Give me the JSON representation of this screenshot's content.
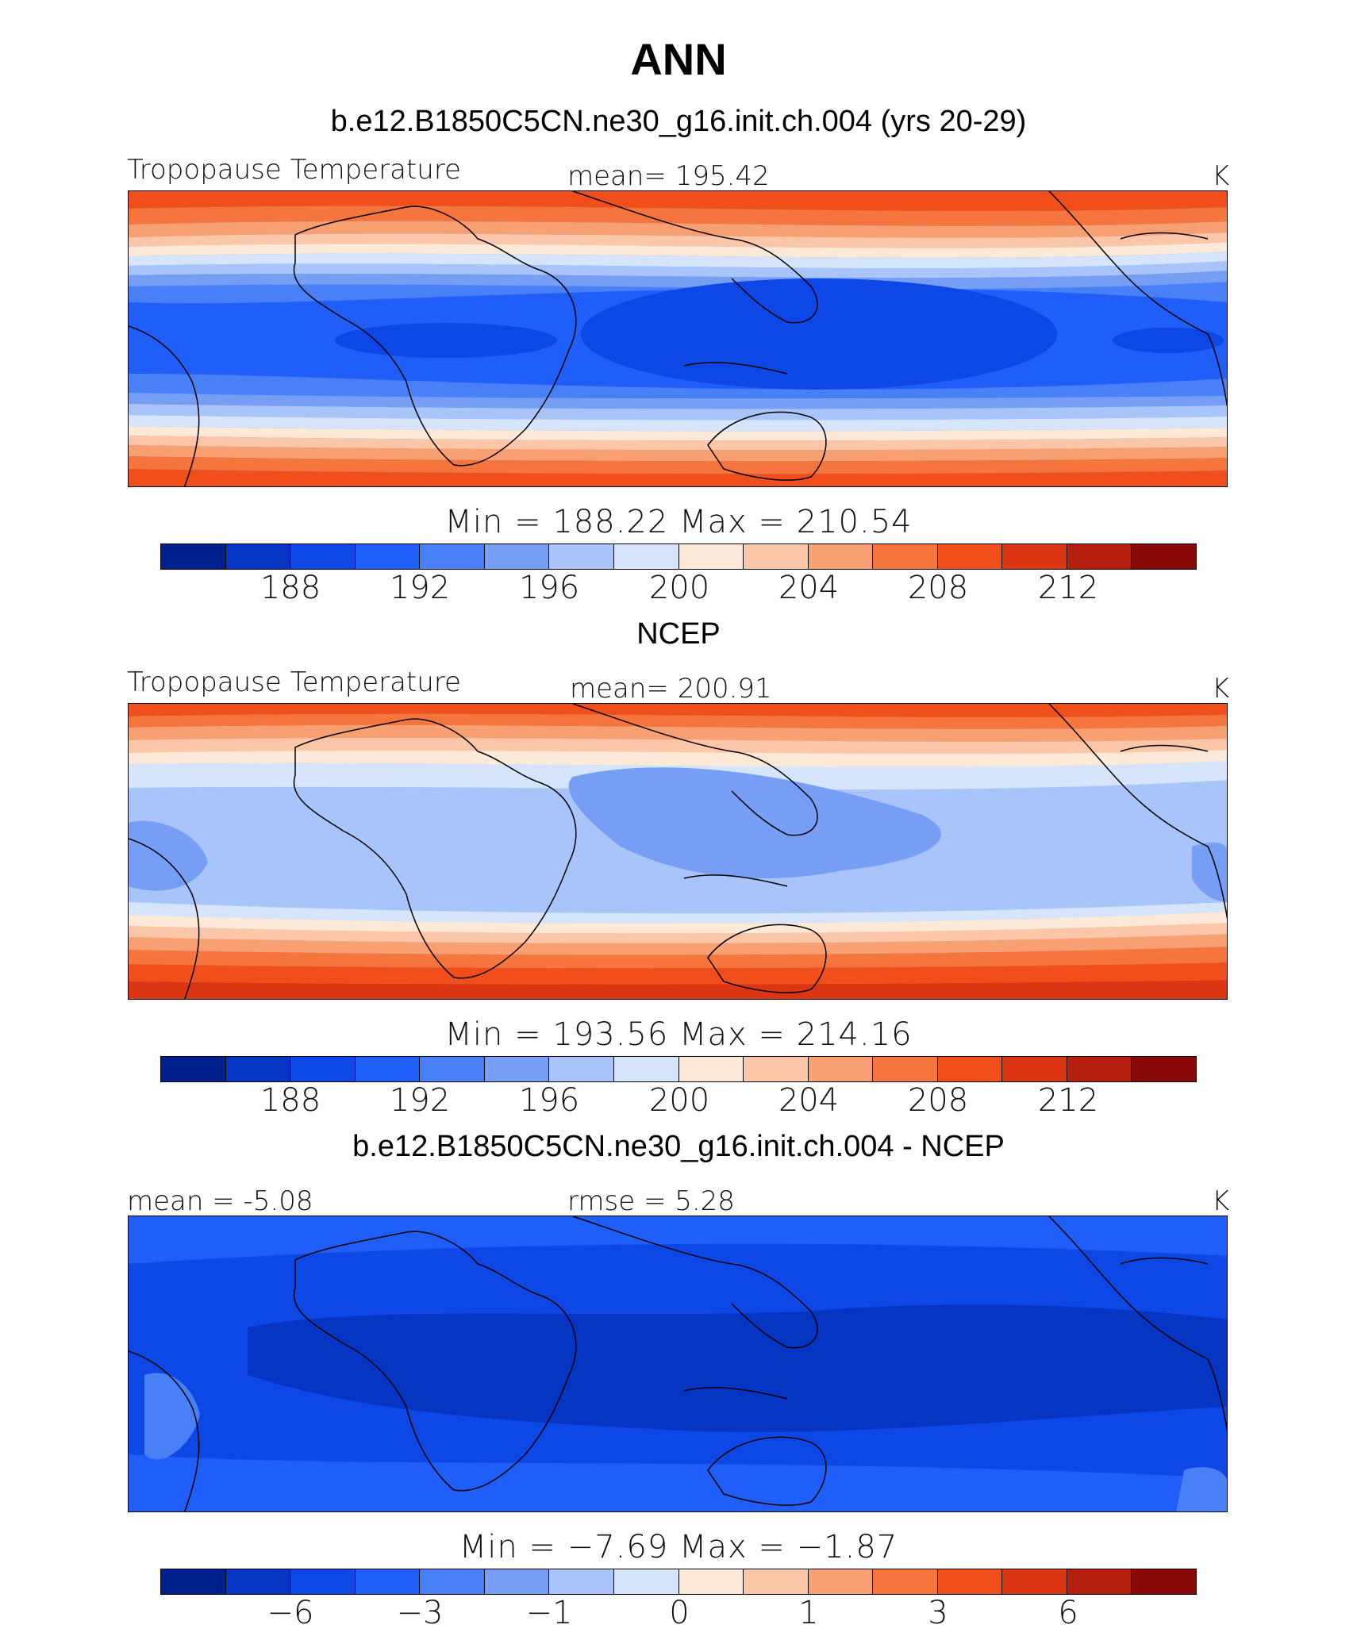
{
  "title": "ANN",
  "panels": [
    {
      "title": "b.e12.B1850C5CN.ne30_g16.init.ch.004 (yrs 20-29)",
      "left_label": "Tropopause Temperature",
      "mid_label": "mean=  195.42",
      "unit": "K",
      "minmax": "Min  =  188.22  Max  =  210.54",
      "tick_labels": [
        "188",
        "192",
        "196",
        "200",
        "204",
        "208",
        "212"
      ]
    },
    {
      "title": "NCEP",
      "left_label": "Tropopause Temperature",
      "mid_label": "mean=  200.91",
      "unit": "K",
      "minmax": "Min  =  193.56  Max  =  214.16",
      "tick_labels": [
        "188",
        "192",
        "196",
        "200",
        "204",
        "208",
        "212"
      ]
    },
    {
      "title": "b.e12.B1850C5CN.ne30_g16.init.ch.004 - NCEP",
      "left_label": "mean =   -5.08",
      "mid_label": "rmse =     5.28",
      "unit": "K",
      "minmax": "Min  =    −7.69  Max  =    −1.87",
      "tick_labels": [
        "−6",
        "−3",
        "−1",
        "0",
        "1",
        "3",
        "6"
      ]
    }
  ],
  "colorbar_colors": [
    "#00208f",
    "#0535c2",
    "#0d47e6",
    "#1f5ef8",
    "#4a80f7",
    "#779ef5",
    "#a9c4f8",
    "#d6e5fb",
    "#fde9d8",
    "#fcc6a8",
    "#f9a072",
    "#f6753d",
    "#f04e1a",
    "#db3512",
    "#b41e0c",
    "#880808"
  ]
}
